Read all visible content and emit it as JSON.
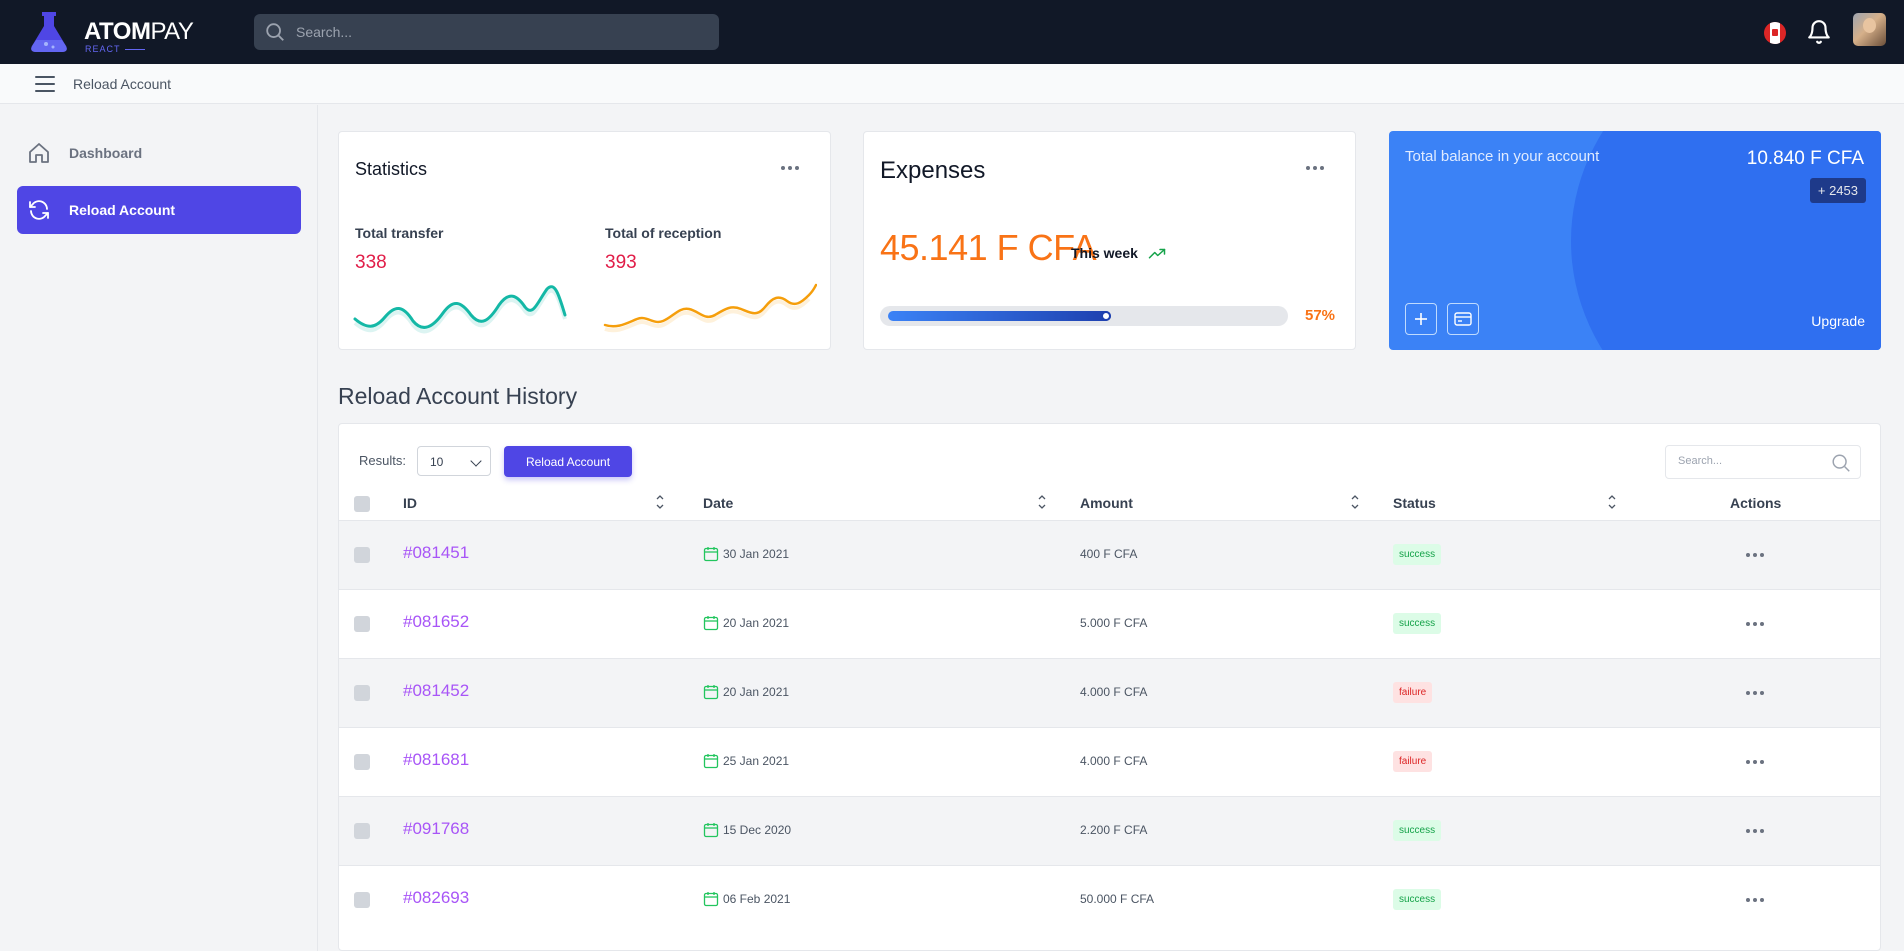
{
  "app": {
    "brand_bold": "ATOM",
    "brand_light": "PAY",
    "brand_sub": "REACT"
  },
  "topbar": {
    "search_placeholder": "Search...",
    "flag": "canada-flag",
    "notification_icon": "bell-icon",
    "avatar": "user-avatar"
  },
  "subbar": {
    "title": "Reload Account"
  },
  "sidebar": {
    "items": [
      {
        "label": "Dashboard",
        "icon": "home-icon",
        "active": false
      },
      {
        "label": "Reload Account",
        "icon": "refresh-icon",
        "active": true
      }
    ]
  },
  "statistics": {
    "title": "Statistics",
    "transfer_label": "Total transfer",
    "transfer_value": "338",
    "reception_label": "Total of reception",
    "reception_value": "393"
  },
  "expenses": {
    "title": "Expenses",
    "value": "45.141 F CFA",
    "period": "This week",
    "progress_percent": 57,
    "progress_label": "57%"
  },
  "balance": {
    "label": "Total balance in your account",
    "value": "10.840 F CFA",
    "badge": "+ 2453",
    "upgrade": "Upgrade"
  },
  "history": {
    "title": "Reload Account History",
    "results_label": "Results:",
    "results_value": "10",
    "reload_button": "Reload Account",
    "search_placeholder": "Search...",
    "columns": [
      "ID",
      "Date",
      "Amount",
      "Status",
      "Actions"
    ],
    "rows": [
      {
        "id": "#081451",
        "date": "30 Jan 2021",
        "amount": "400 F CFA",
        "status": "success"
      },
      {
        "id": "#081652",
        "date": "20 Jan 2021",
        "amount": "5.000 F CFA",
        "status": "success"
      },
      {
        "id": "#081452",
        "date": "20 Jan 2021",
        "amount": "4.000 F CFA",
        "status": "failure"
      },
      {
        "id": "#081681",
        "date": "25 Jan 2021",
        "amount": "4.000 F CFA",
        "status": "failure"
      },
      {
        "id": "#091768",
        "date": "15 Dec 2020",
        "amount": "2.200 F CFA",
        "status": "success"
      },
      {
        "id": "#082693",
        "date": "06 Feb 2021",
        "amount": "50.000 F CFA",
        "status": "success"
      }
    ]
  },
  "colors": {
    "accent": "#4f46e5",
    "topbar": "#111827",
    "balance_card": "#3b82f6",
    "expense_orange": "#f97316",
    "stat_red": "#e11d48",
    "id_purple": "#a855f7",
    "success_green": "#16a34a",
    "failure_red": "#dc2626"
  }
}
